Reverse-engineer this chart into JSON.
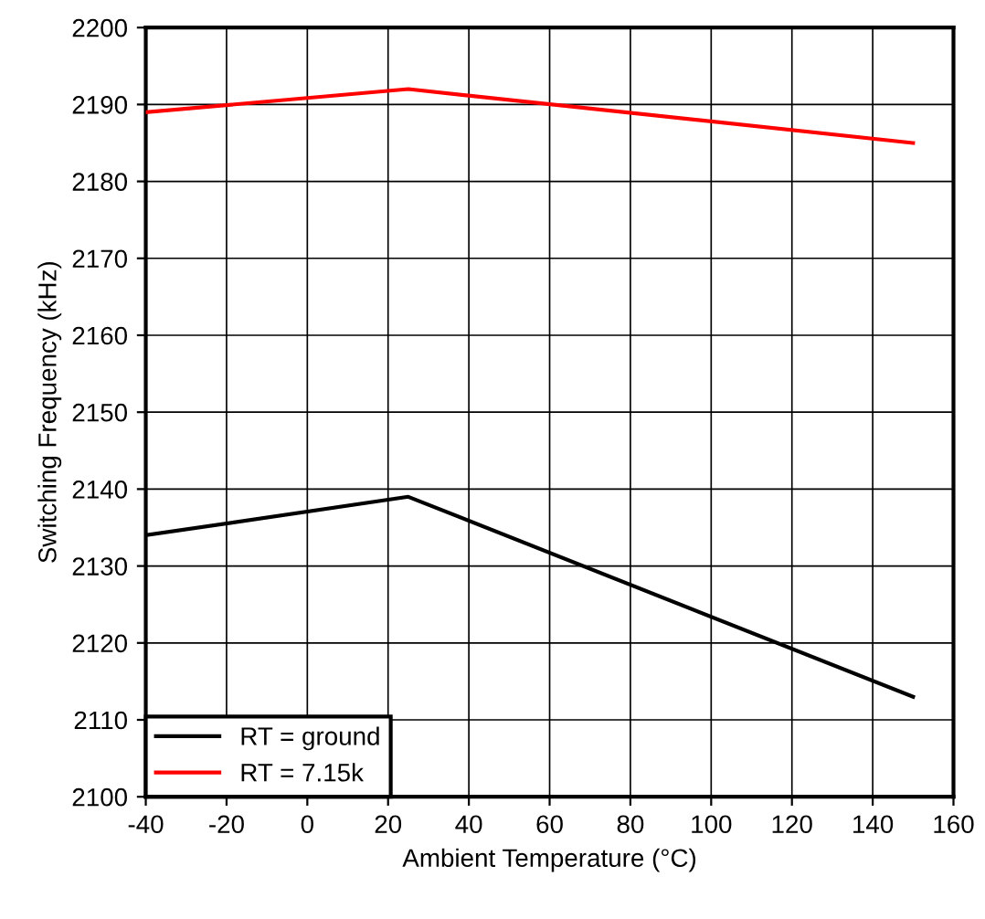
{
  "chart_data": {
    "type": "line",
    "xlabel": "Ambient Temperature (°C)",
    "ylabel": "Switching Frequency (kHz)",
    "x": [
      -40,
      25,
      150
    ],
    "series": [
      {
        "name": "RT = ground",
        "color": "#000000",
        "values": [
          2134,
          2139,
          2113
        ]
      },
      {
        "name": "RT = 7.15k",
        "color": "#ff0000",
        "values": [
          2189,
          2192,
          2185
        ]
      }
    ],
    "xlim": [
      -40,
      160
    ],
    "xticks": [
      -40,
      -20,
      0,
      20,
      40,
      60,
      80,
      100,
      120,
      140,
      160
    ],
    "ylim": [
      2100,
      2200
    ],
    "yticks": [
      2100,
      2110,
      2120,
      2130,
      2140,
      2150,
      2160,
      2170,
      2180,
      2190,
      2200
    ],
    "grid": true,
    "legend": "bottom left",
    "line_style": "solid",
    "marker": "none"
  }
}
